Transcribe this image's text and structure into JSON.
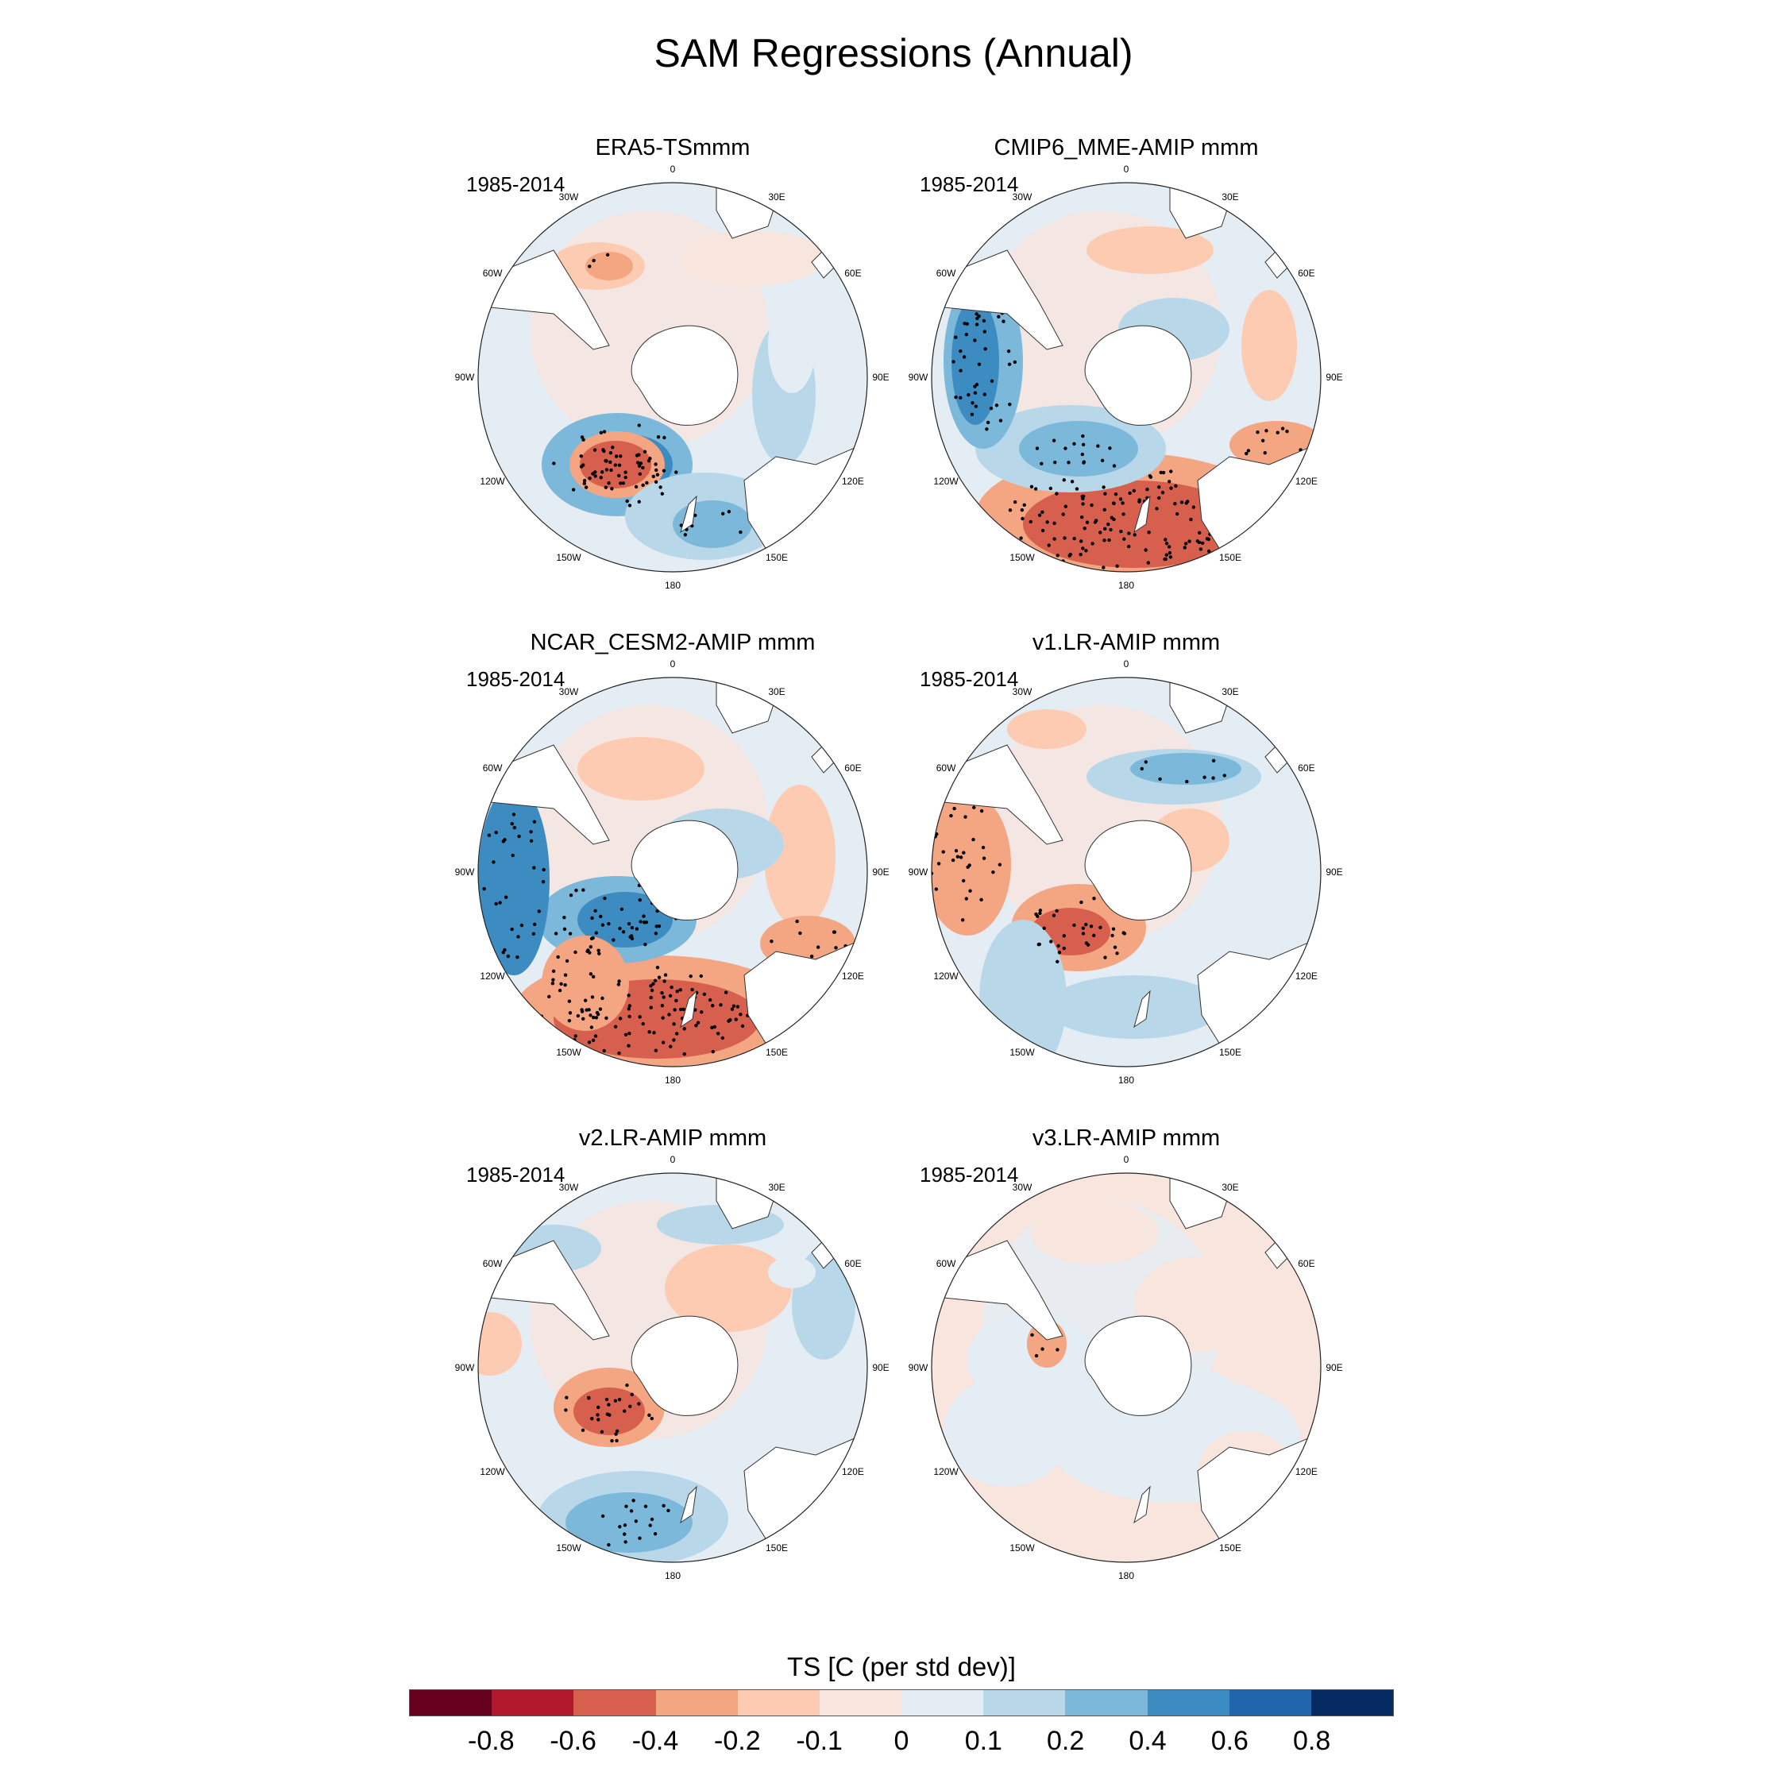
{
  "title": "SAM Regressions (Annual)",
  "chart_data": {
    "type": "heatmap",
    "projection": "south-polar stereographic",
    "grid": "longitude labels around each map",
    "lon_labels": [
      "0",
      "30E",
      "60E",
      "90E",
      "120E",
      "150E",
      "180",
      "150W",
      "120W",
      "90W",
      "60W",
      "30W"
    ],
    "panels": [
      {
        "title": "ERA5-TSmmm",
        "period": "1985-2014"
      },
      {
        "title": "CMIP6_MME-AMIP  mmm",
        "period": "1985-2014"
      },
      {
        "title": "NCAR_CESM2-AMIP  mmm",
        "period": "1985-2014"
      },
      {
        "title": "v1.LR-AMIP  mmm",
        "period": "1985-2014"
      },
      {
        "title": "v2.LR-AMIP  mmm",
        "period": "1985-2014"
      },
      {
        "title": "v3.LR-AMIP  mmm",
        "period": "1985-2014"
      }
    ],
    "colorbar": {
      "title": "TS [C (per std dev)]",
      "placement": "bottom",
      "labels": [
        "-0.8",
        "-0.6",
        "-0.4",
        "-0.2",
        "-0.1",
        "0",
        "0.1",
        "0.2",
        "0.4",
        "0.6",
        "0.8"
      ],
      "colors": [
        "#67001f",
        "#b2182b",
        "#d6604d",
        "#f4a582",
        "#fdcbb2",
        "#f8e5de",
        "#e4edf4",
        "#b8d8ea",
        "#7cb8d9",
        "#3d8cc1",
        "#2166ac",
        "#062b62"
      ]
    }
  }
}
